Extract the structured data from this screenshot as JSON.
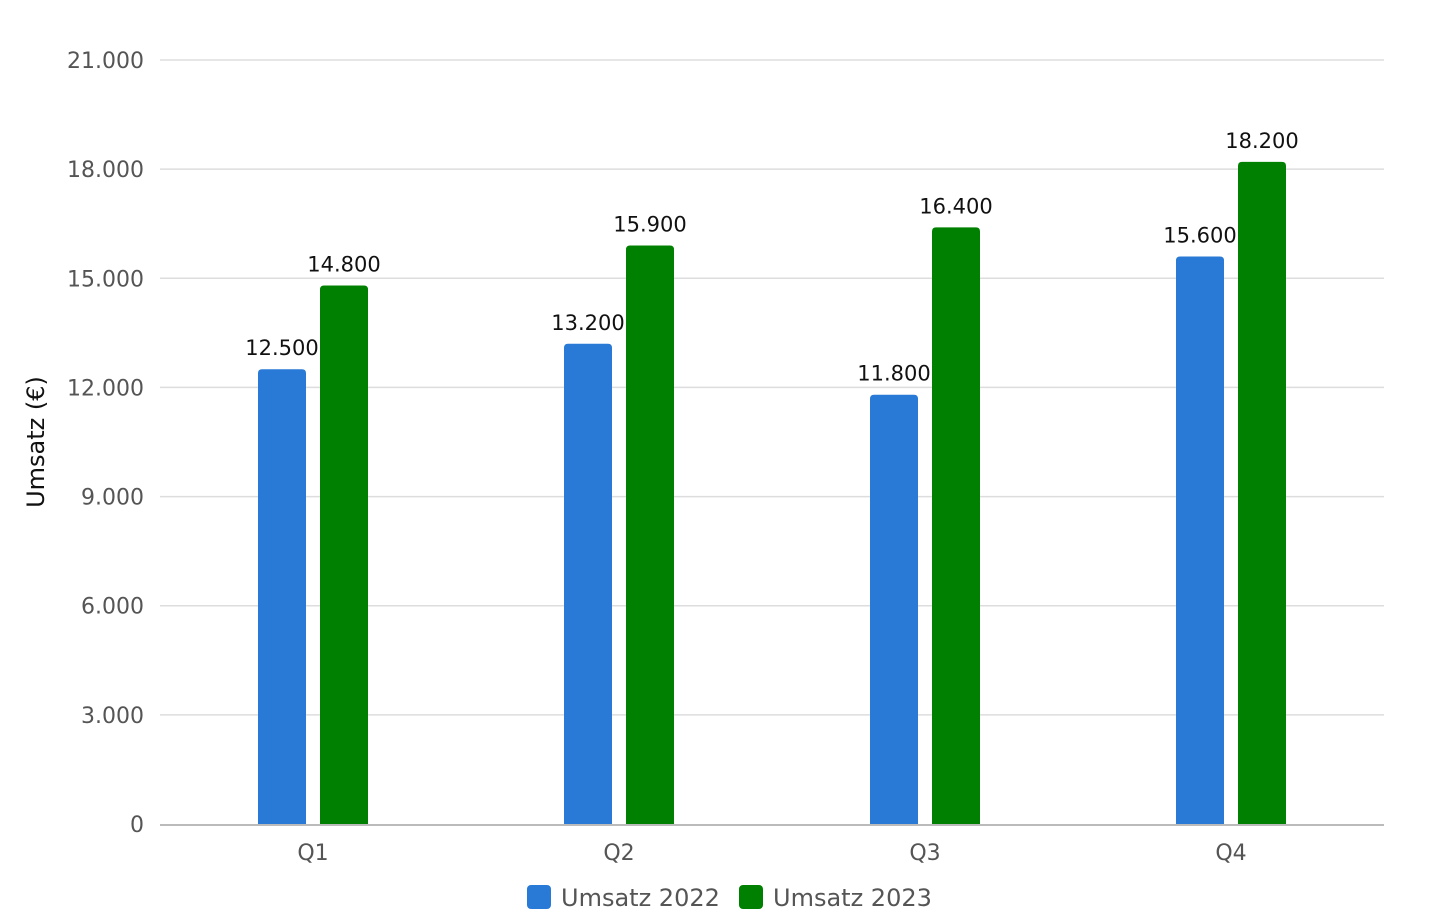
{
  "chart_data": {
    "type": "bar",
    "categories": [
      "Q1",
      "Q2",
      "Q3",
      "Q4"
    ],
    "series": [
      {
        "name": "Umsatz 2022",
        "color": "#2979d6",
        "values": [
          12500,
          13200,
          11800,
          15600
        ],
        "labels": [
          "12.500",
          "13.200",
          "11.800",
          "15.600"
        ]
      },
      {
        "name": "Umsatz 2023",
        "color": "#008000",
        "values": [
          14800,
          15900,
          16400,
          18200
        ],
        "labels": [
          "14.800",
          "15.900",
          "16.400",
          "18.200"
        ]
      }
    ],
    "ylabel": "Umsatz (€)",
    "xlabel": "",
    "ylim": [
      0,
      21000
    ],
    "yticks": [
      0,
      3000,
      6000,
      9000,
      12000,
      15000,
      18000,
      21000
    ],
    "ytick_labels": [
      "0",
      "3.000",
      "6.000",
      "9.000",
      "12.000",
      "15.000",
      "18.000",
      "21.000"
    ],
    "grid": true,
    "legend": "bottom",
    "gridline_color": "#dddddd",
    "axis_color": "#bbbbbb"
  }
}
